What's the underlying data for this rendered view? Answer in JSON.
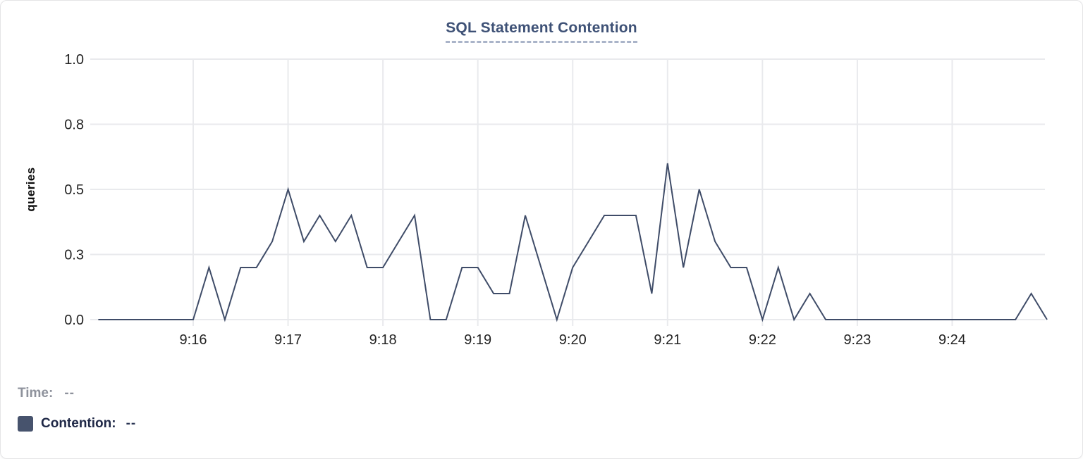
{
  "colors": {
    "line": "#3f4c68",
    "swatch": "#47536d",
    "title": "#3e5176",
    "grid": "#e9eaed",
    "axis_text": "#242424",
    "muted_text": "#8e929c",
    "legend_text": "#1e2746"
  },
  "chart_data": {
    "type": "line",
    "title": "SQL Statement Contention",
    "ylabel": "queries",
    "xlabel": "",
    "ylim": [
      0,
      1.0
    ],
    "grid": true,
    "legend_position": "bottom-left",
    "y_ticks": [
      {
        "v": 0,
        "label": "0.0"
      },
      {
        "v": 0.25,
        "label": "0.3"
      },
      {
        "v": 0.5,
        "label": "0.5"
      },
      {
        "v": 0.75,
        "label": "0.8"
      },
      {
        "v": 1.0,
        "label": "1.0"
      }
    ],
    "x_ticks": [
      "9:16",
      "9:17",
      "9:18",
      "9:19",
      "9:20",
      "9:21",
      "9:22",
      "9:23",
      "9:24"
    ],
    "x_start_offset_minutes_from_first_tick": -1,
    "series": [
      {
        "name": "Contention",
        "start_time": "9:15:00",
        "interval_seconds": 10,
        "values": [
          0,
          0,
          0,
          0,
          0,
          0,
          0,
          0.2,
          0,
          0.2,
          0.2,
          0.3,
          0.5,
          0.3,
          0.4,
          0.3,
          0.4,
          0.2,
          0.2,
          0.3,
          0.4,
          0,
          0,
          0.2,
          0.2,
          0.1,
          0.1,
          0.4,
          0.2,
          0,
          0.2,
          0.3,
          0.4,
          0.4,
          0.4,
          0.1,
          0.6,
          0.2,
          0.5,
          0.3,
          0.2,
          0.2,
          0,
          0.2,
          0,
          0.1,
          0,
          0,
          0,
          0,
          0,
          0,
          0,
          0,
          0,
          0,
          0,
          0,
          0,
          0.1,
          0
        ]
      }
    ]
  },
  "tooltip": {
    "time_label": "Time:",
    "time_value": "--",
    "series_label": "Contention:",
    "series_value": "--"
  }
}
